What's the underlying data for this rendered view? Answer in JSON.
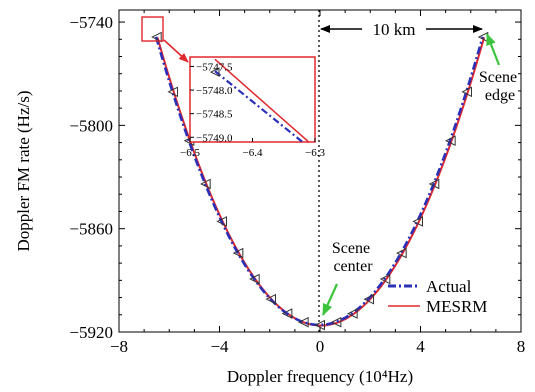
{
  "chart_data": [
    {
      "type": "line",
      "xlabel": "Doppler frequency (10⁴Hz)",
      "ylabel": "Doppler FM rate (Hz/s)",
      "xlim": [
        -8,
        8
      ],
      "ylim": [
        -5920,
        -5733
      ],
      "xticks": [
        -8,
        -4,
        0,
        4,
        8
      ],
      "yticks": [
        -5740,
        -5800,
        -5860,
        -5920
      ],
      "xtick_labels": [
        "−8",
        "−4",
        "0",
        "4",
        "8"
      ],
      "ytick_labels": [
        "−5740",
        "−5800",
        "−5860",
        "−5920"
      ],
      "grid": false,
      "legend_position": "bottom-right",
      "series": [
        {
          "name": "Actual",
          "color": "#2a2fb8",
          "style": "dash-dot",
          "marker": "triangle-left"
        },
        {
          "name": "MESRM",
          "color": "#e0282d",
          "style": "solid"
        }
      ],
      "curve": {
        "x0": 0,
        "y0": -5916,
        "k": 3.96,
        "x_range": [
          -6.5,
          6.5
        ]
      },
      "marker_x": [
        -6.5,
        -5.85,
        -5.2,
        -4.55,
        -3.9,
        -3.25,
        -2.6,
        -1.95,
        -1.3,
        -0.65,
        0,
        0.65,
        1.3,
        1.95,
        2.6,
        3.25,
        3.9,
        4.55,
        5.2,
        5.85,
        6.5
      ],
      "annotations": {
        "distance_label": "10 km",
        "scene_edge": [
          "Scene",
          "edge"
        ],
        "scene_center": [
          "Scene",
          "center"
        ]
      }
    },
    {
      "type": "line",
      "role": "inset",
      "xlim": [
        -6.5,
        -6.3
      ],
      "ylim": [
        -5749.1,
        -5747.3
      ],
      "xticks": [
        -6.5,
        -6.4,
        -6.3
      ],
      "yticks": [
        -5747.5,
        -5748.0,
        -5748.5,
        -5749.0
      ],
      "xtick_labels": [
        "−6.5",
        "−6.4",
        "−6.3"
      ],
      "ytick_labels": [
        "−5747.5",
        "−5748.0",
        "−5748.5",
        "−5749.0"
      ],
      "series": [
        {
          "name": "Actual",
          "x": [
            -6.46,
            -6.32
          ],
          "y": [
            -5747.6,
            -5749.1
          ]
        },
        {
          "name": "MESRM",
          "x": [
            -6.46,
            -6.31
          ],
          "y": [
            -5747.35,
            -5749.1
          ]
        }
      ],
      "marker": {
        "x": -6.46,
        "y": -5747.62
      }
    }
  ]
}
